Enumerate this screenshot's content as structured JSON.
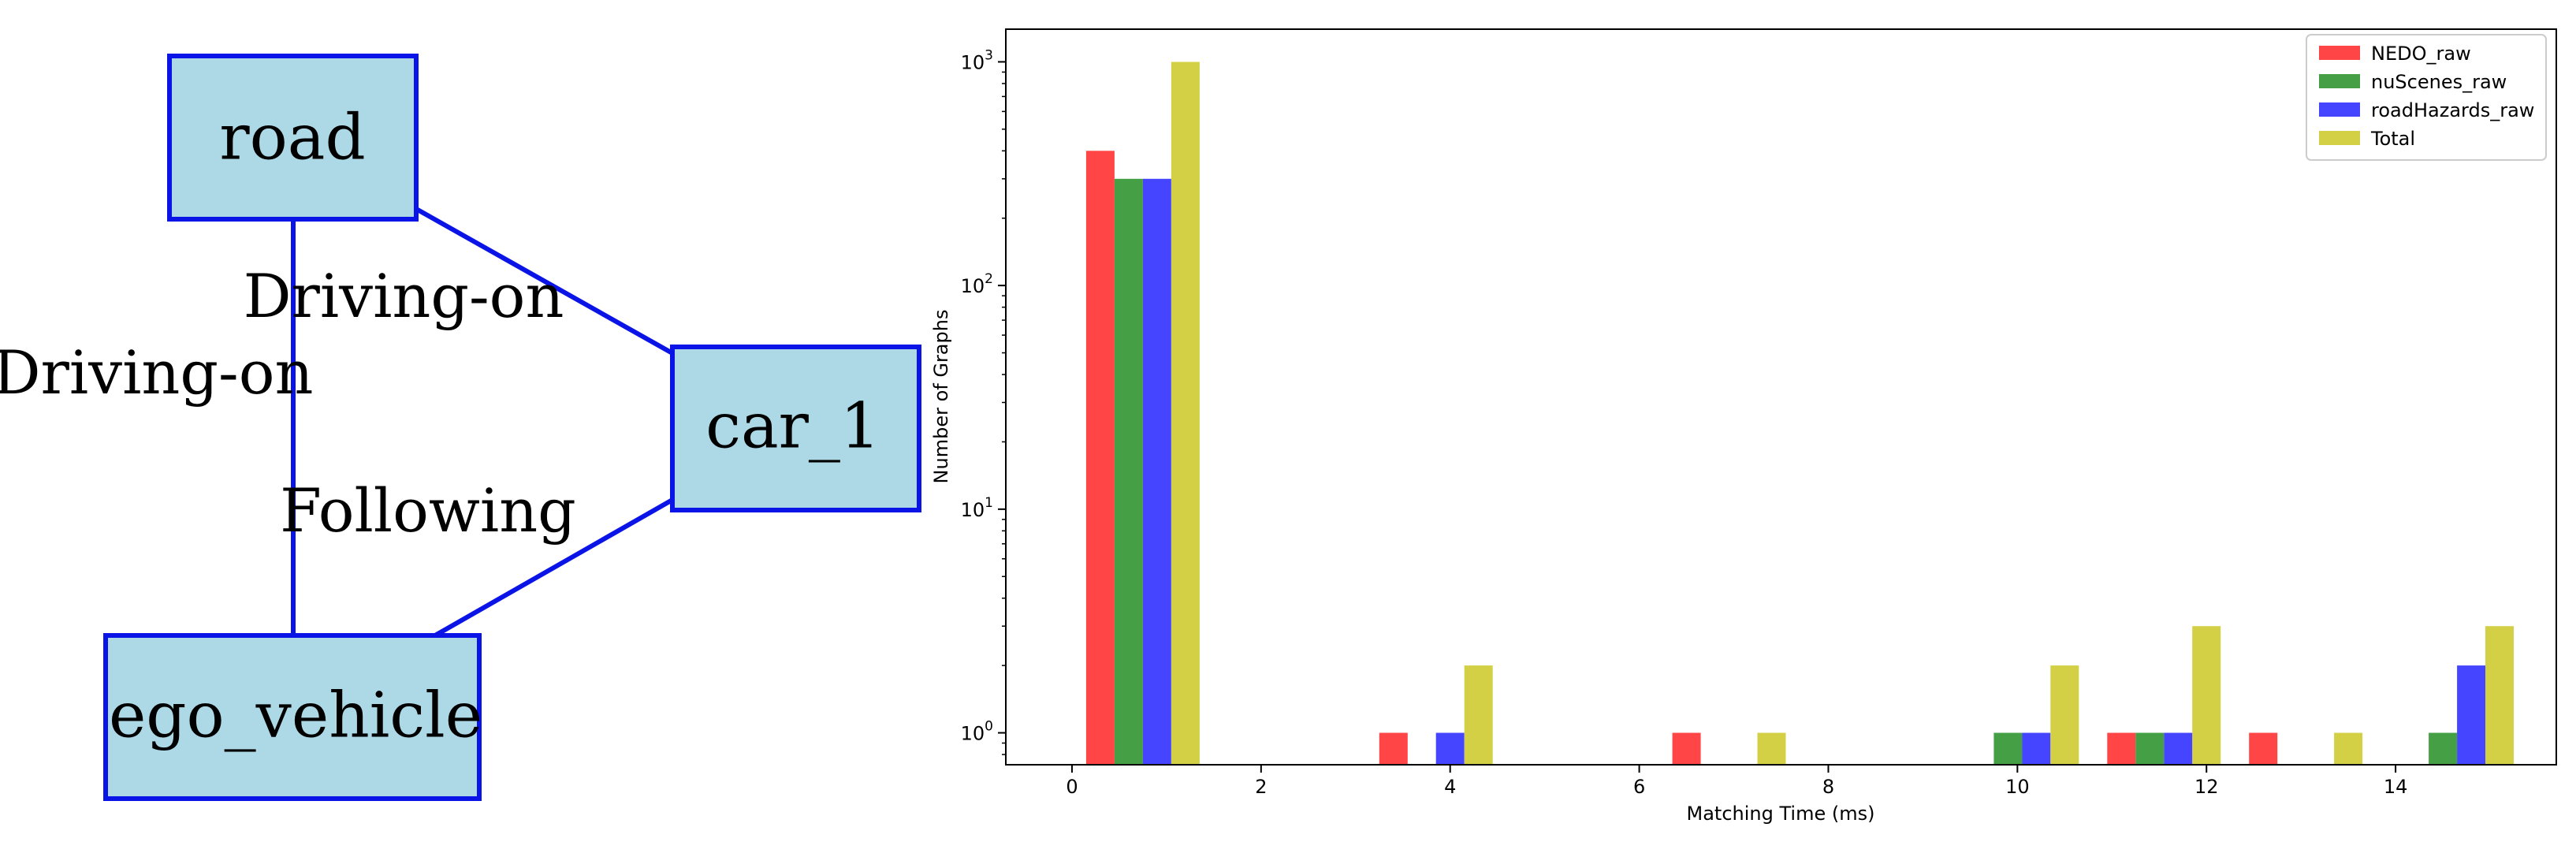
{
  "diagram": {
    "nodes": [
      {
        "id": "road",
        "label": "road"
      },
      {
        "id": "car_1",
        "label": "car_1"
      },
      {
        "id": "ego_vehicle",
        "label": "ego_vehicle"
      }
    ],
    "edges": [
      {
        "from": "road",
        "to": "car_1",
        "label": "Driving-on"
      },
      {
        "from": "road",
        "to": "ego_vehicle",
        "label": "Driving-on"
      },
      {
        "from": "ego_vehicle",
        "to": "car_1",
        "label": "Following"
      }
    ],
    "colors": {
      "node_fill": "#add8e6",
      "stroke": "#0a14e6"
    }
  },
  "chart_data": {
    "type": "bar",
    "xlabel": "Matching Time (ms)",
    "ylabel": "Number of Graphs",
    "yscale": "log",
    "xlim": [
      -0.7,
      15.7
    ],
    "ylim": [
      0.72,
      1400
    ],
    "xticks": [
      0,
      2,
      4,
      6,
      8,
      10,
      12,
      14
    ],
    "yticks": [
      {
        "value": 1,
        "base": "10",
        "exp": "0"
      },
      {
        "value": 10,
        "base": "10",
        "exp": "1"
      },
      {
        "value": 100,
        "base": "10",
        "exp": "2"
      },
      {
        "value": 1000,
        "base": "10",
        "exp": "3"
      }
    ],
    "bin_width": 1.2,
    "legend_position": "top-right",
    "series": [
      {
        "name": "NEDO_raw",
        "color": "#ff4545",
        "points": [
          [
            0.3,
            400
          ],
          [
            3.4,
            1
          ],
          [
            6.5,
            1
          ],
          [
            11.1,
            1
          ],
          [
            12.6,
            1
          ]
        ]
      },
      {
        "name": "nuScenes_raw",
        "color": "#45a045",
        "points": [
          [
            0.6,
            300
          ],
          [
            9.9,
            1
          ],
          [
            11.4,
            1
          ],
          [
            14.5,
            1
          ]
        ]
      },
      {
        "name": "roadHazards_raw",
        "color": "#4545ff",
        "points": [
          [
            0.9,
            300
          ],
          [
            4.0,
            1
          ],
          [
            10.2,
            1
          ],
          [
            11.7,
            1
          ],
          [
            14.8,
            2
          ]
        ]
      },
      {
        "name": "Total",
        "color": "#d4d045",
        "points": [
          [
            1.2,
            1000
          ],
          [
            4.3,
            2
          ],
          [
            7.4,
            1
          ],
          [
            10.5,
            2
          ],
          [
            12.0,
            3
          ],
          [
            13.5,
            1
          ],
          [
            15.1,
            3
          ]
        ]
      }
    ]
  }
}
